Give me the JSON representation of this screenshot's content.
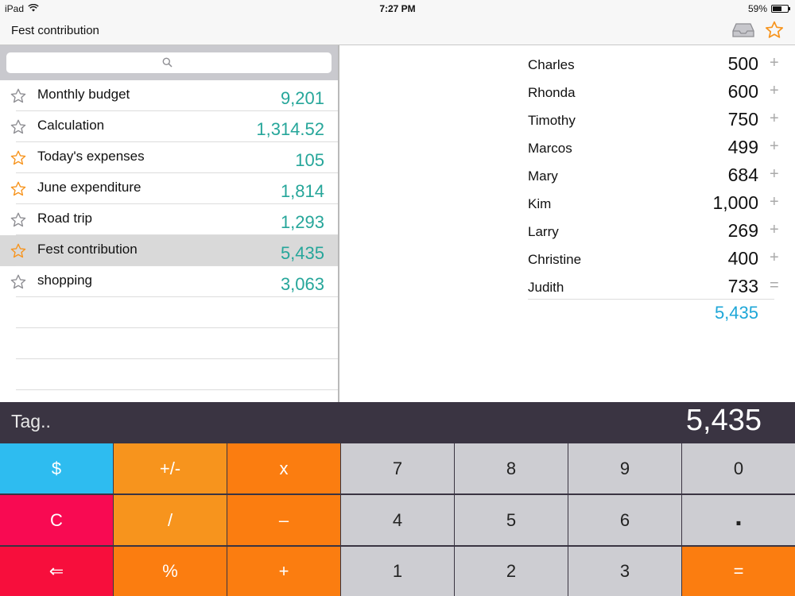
{
  "status": {
    "device": "iPad",
    "time": "7:27 PM",
    "battery": "59%",
    "battery_level": 0.59
  },
  "nav": {
    "title": "Fest contribution",
    "inbox_icon": "tray-icon",
    "star_icon": "star-icon"
  },
  "search": {
    "placeholder": ""
  },
  "lists": [
    {
      "name": "Monthly budget",
      "value": "9,201",
      "favorite": false,
      "selected": false
    },
    {
      "name": "Calculation",
      "value": "1,314.52",
      "favorite": false,
      "selected": false
    },
    {
      "name": "Today's expenses",
      "value": "105",
      "favorite": true,
      "selected": false
    },
    {
      "name": "June expenditure",
      "value": "1,814",
      "favorite": true,
      "selected": false
    },
    {
      "name": "Road trip",
      "value": "1,293",
      "favorite": false,
      "selected": false
    },
    {
      "name": "Fest contribution",
      "value": "5,435",
      "favorite": true,
      "selected": true
    },
    {
      "name": "shopping",
      "value": "3,063",
      "favorite": false,
      "selected": false
    }
  ],
  "entries": [
    {
      "name": "Charles",
      "value": "500",
      "op": "+"
    },
    {
      "name": "Rhonda",
      "value": "600",
      "op": "+"
    },
    {
      "name": "Timothy",
      "value": "750",
      "op": "+"
    },
    {
      "name": "Marcos",
      "value": "499",
      "op": "+"
    },
    {
      "name": "Mary",
      "value": "684",
      "op": "+"
    },
    {
      "name": "Kim",
      "value": "1,000",
      "op": "+"
    },
    {
      "name": "Larry",
      "value": "269",
      "op": "+"
    },
    {
      "name": "Christine",
      "value": "400",
      "op": "+"
    },
    {
      "name": "Judith",
      "value": "733",
      "op": "="
    }
  ],
  "total": "5,435",
  "display": {
    "tag_placeholder": "Tag..",
    "value": "5,435"
  },
  "keys": [
    [
      "$",
      "+/-",
      "x",
      "7",
      "8",
      "9",
      "0"
    ],
    [
      "C",
      "/",
      "–",
      "4",
      "5",
      "6",
      "."
    ],
    [
      "⇐",
      "%",
      "+",
      "1",
      "2",
      "3",
      "="
    ]
  ],
  "colors": {
    "value_teal": "#26a69a",
    "total_blue": "#1ea7d8",
    "star_orange": "#f7941d",
    "star_gray": "#8e8e93",
    "key_blue": "#2ebcf0",
    "key_orange": "#f7941d",
    "key_orange_dark": "#fb7d10",
    "key_pink": "#f80a52",
    "key_red": "#f70e3c",
    "key_gray": "#cdcdd2",
    "display_bg": "#3a3442"
  }
}
